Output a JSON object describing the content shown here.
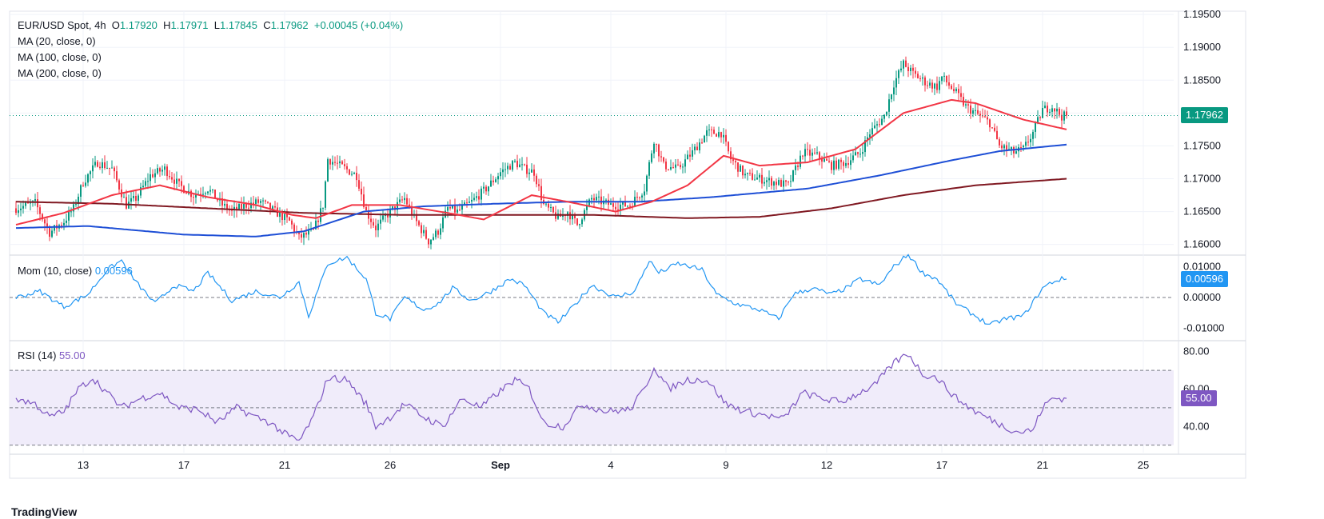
{
  "header": {
    "symbol": "EUR/USD Spot, 4h",
    "open_label": "O",
    "open": "1.17920",
    "high_label": "H",
    "high": "1.17971",
    "low_label": "L",
    "low": "1.17845",
    "close_label": "C",
    "close": "1.17962",
    "change": "+0.00045 (+0.04%)"
  },
  "indicators": {
    "ma20": "MA (20, close, 0)",
    "ma100": "MA (100, close, 0)",
    "ma200": "MA (200, close, 0)",
    "mom_label": "Mom (10, close)",
    "mom_value": "0.00596",
    "rsi_label": "RSI (14)",
    "rsi_value": "55.00"
  },
  "price_tag": "1.17962",
  "mom_tag": "0.00596",
  "rsi_tag": "55.00",
  "brand": "TradingView",
  "colors": {
    "up": "#089981",
    "down": "#f23645",
    "ma20": "#f23645",
    "ma100": "#1e4fd6",
    "ma200": "#801922",
    "momentum": "#2196f3",
    "rsi": "#7e57c2",
    "rsi_band": "#f0ecfa",
    "price_line": "#089981"
  },
  "chart_data": [
    {
      "type": "candlestick",
      "timeframe": "4h",
      "ylim": [
        1.1585,
        1.1955
      ],
      "y_ticks": [
        "1.19500",
        "1.19000",
        "1.18500",
        "1.18000",
        "1.17500",
        "1.17000",
        "1.16500",
        "1.16000"
      ],
      "x_ticks": [
        "13",
        "17",
        "21",
        "26",
        "Sep",
        "4",
        "9",
        "12",
        "17",
        "21",
        "25"
      ],
      "anchors": [
        [
          0,
          1.1655
        ],
        [
          8,
          1.1663
        ],
        [
          14,
          1.1618
        ],
        [
          20,
          1.1635
        ],
        [
          24,
          1.1655
        ],
        [
          28,
          1.1695
        ],
        [
          34,
          1.1725
        ],
        [
          40,
          1.1715
        ],
        [
          46,
          1.166
        ],
        [
          50,
          1.167
        ],
        [
          56,
          1.1705
        ],
        [
          62,
          1.1715
        ],
        [
          68,
          1.169
        ],
        [
          74,
          1.1675
        ],
        [
          80,
          1.1685
        ],
        [
          86,
          1.166
        ],
        [
          90,
          1.165
        ],
        [
          96,
          1.166
        ],
        [
          102,
          1.1665
        ],
        [
          108,
          1.165
        ],
        [
          114,
          1.1635
        ],
        [
          118,
          1.161
        ],
        [
          124,
          1.162
        ],
        [
          128,
          1.166
        ],
        [
          130,
          1.173
        ],
        [
          136,
          1.1718
        ],
        [
          142,
          1.1705
        ],
        [
          146,
          1.165
        ],
        [
          150,
          1.1625
        ],
        [
          156,
          1.165
        ],
        [
          162,
          1.167
        ],
        [
          166,
          1.164
        ],
        [
          172,
          1.1605
        ],
        [
          176,
          1.162
        ],
        [
          180,
          1.1655
        ],
        [
          184,
          1.165
        ],
        [
          190,
          1.1665
        ],
        [
          196,
          1.1685
        ],
        [
          202,
          1.171
        ],
        [
          208,
          1.1725
        ],
        [
          212,
          1.1715
        ],
        [
          216,
          1.171
        ],
        [
          220,
          1.166
        ],
        [
          226,
          1.164
        ],
        [
          230,
          1.165
        ],
        [
          234,
          1.163
        ],
        [
          240,
          1.167
        ],
        [
          248,
          1.166
        ],
        [
          256,
          1.166
        ],
        [
          262,
          1.1685
        ],
        [
          266,
          1.176
        ],
        [
          270,
          1.172
        ],
        [
          276,
          1.1715
        ],
        [
          282,
          1.174
        ],
        [
          288,
          1.177
        ],
        [
          294,
          1.177
        ],
        [
          298,
          1.173
        ],
        [
          304,
          1.1705
        ],
        [
          310,
          1.17
        ],
        [
          316,
          1.1695
        ],
        [
          322,
          1.169
        ],
        [
          328,
          1.174
        ],
        [
          334,
          1.1735
        ],
        [
          340,
          1.172
        ],
        [
          346,
          1.1725
        ],
        [
          352,
          1.174
        ],
        [
          356,
          1.177
        ],
        [
          362,
          1.1795
        ],
        [
          366,
          1.1845
        ],
        [
          370,
          1.1875
        ],
        [
          374,
          1.186
        ],
        [
          380,
          1.1845
        ],
        [
          384,
          1.184
        ],
        [
          386,
          1.1855
        ],
        [
          392,
          1.183
        ],
        [
          396,
          1.181
        ],
        [
          400,
          1.18
        ],
        [
          406,
          1.1785
        ],
        [
          410,
          1.175
        ],
        [
          416,
          1.174
        ],
        [
          420,
          1.1745
        ],
        [
          424,
          1.177
        ],
        [
          428,
          1.1805
        ],
        [
          432,
          1.181
        ],
        [
          436,
          1.1795
        ],
        [
          438,
          1.1796
        ]
      ],
      "last_price": 1.17962,
      "price_line": 1.17962,
      "ma20_anchors": [
        [
          0,
          1.163
        ],
        [
          20,
          1.1648
        ],
        [
          40,
          1.1675
        ],
        [
          60,
          1.169
        ],
        [
          80,
          1.1672
        ],
        [
          100,
          1.166
        ],
        [
          115,
          1.1645
        ],
        [
          125,
          1.164
        ],
        [
          140,
          1.166
        ],
        [
          160,
          1.166
        ],
        [
          180,
          1.1648
        ],
        [
          195,
          1.1638
        ],
        [
          215,
          1.1675
        ],
        [
          230,
          1.1665
        ],
        [
          250,
          1.165
        ],
        [
          265,
          1.1665
        ],
        [
          280,
          1.169
        ],
        [
          295,
          1.1735
        ],
        [
          310,
          1.172
        ],
        [
          330,
          1.1725
        ],
        [
          350,
          1.1745
        ],
        [
          370,
          1.18
        ],
        [
          390,
          1.182
        ],
        [
          400,
          1.1815
        ],
        [
          420,
          1.179
        ],
        [
          438,
          1.1775
        ]
      ],
      "ma100_anchors": [
        [
          0,
          1.1625
        ],
        [
          30,
          1.1628
        ],
        [
          70,
          1.1615
        ],
        [
          100,
          1.1612
        ],
        [
          120,
          1.162
        ],
        [
          145,
          1.165
        ],
        [
          170,
          1.1658
        ],
        [
          200,
          1.1662
        ],
        [
          230,
          1.1665
        ],
        [
          260,
          1.1665
        ],
        [
          290,
          1.1672
        ],
        [
          330,
          1.1685
        ],
        [
          360,
          1.1705
        ],
        [
          390,
          1.1728
        ],
        [
          410,
          1.1742
        ],
        [
          438,
          1.1752
        ]
      ],
      "ma200_anchors": [
        [
          0,
          1.1665
        ],
        [
          40,
          1.1662
        ],
        [
          80,
          1.1655
        ],
        [
          120,
          1.1648
        ],
        [
          160,
          1.1645
        ],
        [
          200,
          1.1645
        ],
        [
          240,
          1.1645
        ],
        [
          280,
          1.164
        ],
        [
          310,
          1.1642
        ],
        [
          340,
          1.1655
        ],
        [
          370,
          1.1675
        ],
        [
          400,
          1.169
        ],
        [
          438,
          1.17
        ]
      ]
    },
    {
      "type": "line",
      "name": "Mom (10, close)",
      "ylim": [
        -0.0135,
        0.0135
      ],
      "y_ticks": [
        "0.01000",
        "0.00000",
        "-0.01000"
      ],
      "last_value": 0.00596,
      "anchors": [
        [
          0,
          0.0
        ],
        [
          10,
          0.002
        ],
        [
          20,
          -0.003
        ],
        [
          30,
          0.001
        ],
        [
          38,
          0.009
        ],
        [
          44,
          0.012
        ],
        [
          50,
          0.005
        ],
        [
          58,
          -0.002
        ],
        [
          66,
          0.004
        ],
        [
          74,
          0.002
        ],
        [
          80,
          0.008
        ],
        [
          90,
          -0.001
        ],
        [
          100,
          0.002
        ],
        [
          110,
          0.0
        ],
        [
          118,
          0.005
        ],
        [
          122,
          -0.006
        ],
        [
          130,
          0.011
        ],
        [
          138,
          0.013
        ],
        [
          146,
          0.006
        ],
        [
          150,
          -0.005
        ],
        [
          156,
          -0.007
        ],
        [
          162,
          0.0
        ],
        [
          170,
          -0.004
        ],
        [
          176,
          -0.002
        ],
        [
          182,
          0.003
        ],
        [
          190,
          -0.001
        ],
        [
          198,
          0.002
        ],
        [
          206,
          0.006
        ],
        [
          212,
          0.004
        ],
        [
          220,
          -0.005
        ],
        [
          226,
          -0.008
        ],
        [
          230,
          -0.005
        ],
        [
          240,
          0.004
        ],
        [
          250,
          0.0
        ],
        [
          258,
          0.002
        ],
        [
          264,
          0.012
        ],
        [
          268,
          0.008
        ],
        [
          276,
          0.011
        ],
        [
          286,
          0.009
        ],
        [
          292,
          0.001
        ],
        [
          300,
          -0.002
        ],
        [
          310,
          -0.004
        ],
        [
          318,
          -0.007
        ],
        [
          324,
          0.001
        ],
        [
          332,
          0.003
        ],
        [
          340,
          0.001
        ],
        [
          346,
          0.003
        ],
        [
          352,
          0.006
        ],
        [
          360,
          0.004
        ],
        [
          366,
          0.01
        ],
        [
          372,
          0.014
        ],
        [
          378,
          0.008
        ],
        [
          384,
          0.006
        ],
        [
          392,
          -0.002
        ],
        [
          400,
          -0.006
        ],
        [
          406,
          -0.009
        ],
        [
          412,
          -0.007
        ],
        [
          420,
          -0.006
        ],
        [
          428,
          0.003
        ],
        [
          432,
          0.005
        ],
        [
          436,
          0.006
        ],
        [
          438,
          0.006
        ]
      ]
    },
    {
      "type": "line",
      "name": "RSI (14)",
      "ylim": [
        26,
        85
      ],
      "y_ticks": [
        "80.00",
        "60.00",
        "40.00"
      ],
      "bands": [
        30,
        50,
        70
      ],
      "last_value": 55.0,
      "anchors": [
        [
          0,
          55
        ],
        [
          8,
          52
        ],
        [
          14,
          45
        ],
        [
          20,
          48
        ],
        [
          26,
          60
        ],
        [
          32,
          66
        ],
        [
          38,
          58
        ],
        [
          44,
          50
        ],
        [
          52,
          55
        ],
        [
          60,
          58
        ],
        [
          68,
          50
        ],
        [
          76,
          49
        ],
        [
          84,
          42
        ],
        [
          92,
          50
        ],
        [
          100,
          45
        ],
        [
          106,
          42
        ],
        [
          112,
          36
        ],
        [
          118,
          32
        ],
        [
          124,
          45
        ],
        [
          130,
          66
        ],
        [
          138,
          65
        ],
        [
          146,
          52
        ],
        [
          150,
          40
        ],
        [
          156,
          45
        ],
        [
          162,
          52
        ],
        [
          170,
          45
        ],
        [
          178,
          40
        ],
        [
          186,
          55
        ],
        [
          194,
          50
        ],
        [
          200,
          57
        ],
        [
          208,
          65
        ],
        [
          214,
          60
        ],
        [
          220,
          42
        ],
        [
          228,
          40
        ],
        [
          236,
          52
        ],
        [
          246,
          48
        ],
        [
          256,
          49
        ],
        [
          262,
          60
        ],
        [
          266,
          72
        ],
        [
          272,
          60
        ],
        [
          280,
          65
        ],
        [
          288,
          65
        ],
        [
          296,
          52
        ],
        [
          304,
          48
        ],
        [
          312,
          46
        ],
        [
          320,
          44
        ],
        [
          328,
          58
        ],
        [
          336,
          55
        ],
        [
          344,
          53
        ],
        [
          350,
          57
        ],
        [
          358,
          62
        ],
        [
          366,
          74
        ],
        [
          372,
          79
        ],
        [
          378,
          68
        ],
        [
          384,
          66
        ],
        [
          392,
          55
        ],
        [
          400,
          48
        ],
        [
          406,
          44
        ],
        [
          412,
          40
        ],
        [
          418,
          37
        ],
        [
          424,
          38
        ],
        [
          428,
          50
        ],
        [
          432,
          55
        ],
        [
          436,
          55
        ],
        [
          438,
          55
        ]
      ]
    }
  ]
}
